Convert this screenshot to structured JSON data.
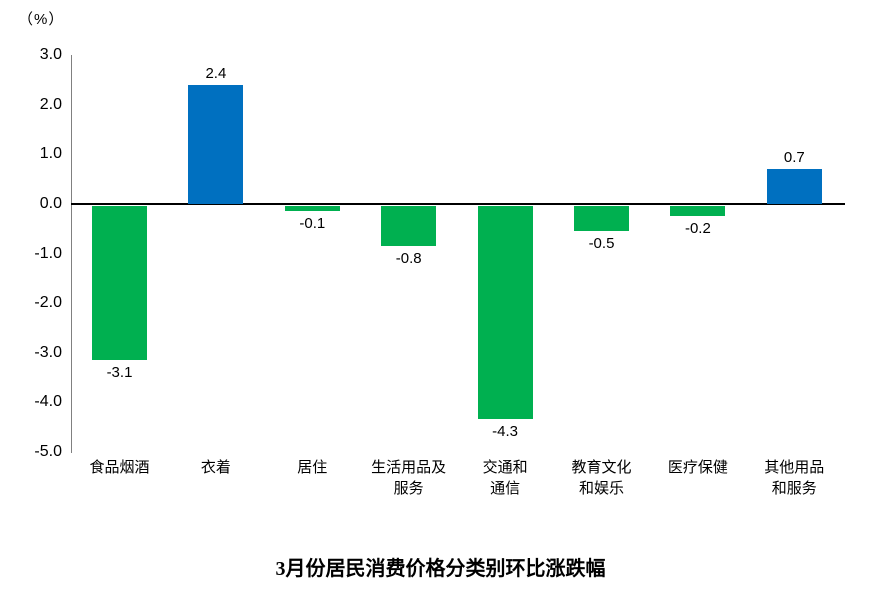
{
  "unit_label": "（%）",
  "title": "3月份居民消费价格分类别环比涨跌幅",
  "colors": {
    "positive_bar": "#0070C0",
    "negative_bar": "#00B050",
    "axis_line": "#808080",
    "zero_line": "#000000",
    "text": "#000000",
    "background": "#ffffff"
  },
  "chart_data": {
    "type": "bar",
    "title": "3月份居民消费价格分类别环比涨跌幅",
    "ylabel": "（%）",
    "xlabel": "",
    "categories": [
      "食品烟酒",
      "衣着",
      "居住",
      "生活用品及\n服务",
      "交通和\n通信",
      "教育文化\n和娱乐",
      "医疗保健",
      "其他用品\n和服务"
    ],
    "values": [
      -3.1,
      2.4,
      -0.1,
      -0.8,
      -4.3,
      -0.5,
      -0.2,
      0.7
    ],
    "data_labels": [
      "-3.1",
      "2.4",
      "-0.1",
      "-0.8",
      "-4.3",
      "-0.5",
      "-0.2",
      "0.7"
    ],
    "bar_colors": [
      "#00B050",
      "#0070C0",
      "#00B050",
      "#00B050",
      "#00B050",
      "#00B050",
      "#00B050",
      "#0070C0"
    ],
    "ylim": [
      -5.0,
      3.0
    ],
    "yticks": [
      3.0,
      2.0,
      1.0,
      0.0,
      -1.0,
      -2.0,
      -3.0,
      -4.0,
      -5.0
    ],
    "ytick_labels": [
      "3.0",
      "2.0",
      "1.0",
      "0.0",
      "-1.0",
      "-2.0",
      "-3.0",
      "-4.0",
      "-5.0"
    ],
    "grid": false,
    "legend": false,
    "label_position": "outside-end"
  }
}
